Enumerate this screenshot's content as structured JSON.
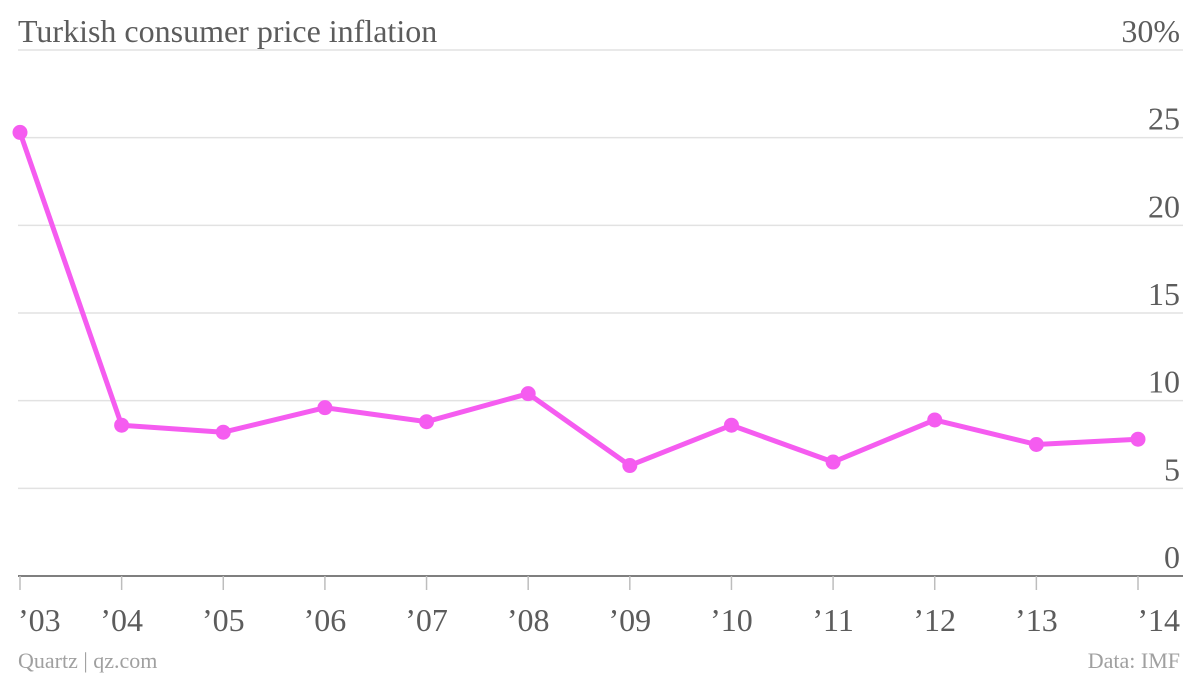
{
  "chart_data": {
    "type": "line",
    "title": "Turkish consumer price inflation",
    "categories": [
      "’03",
      "’04",
      "’05",
      "’06",
      "’07",
      "’08",
      "’09",
      "’10",
      "’11",
      "’12",
      "’13",
      "’14"
    ],
    "series": [
      {
        "values": [
          25.3,
          8.6,
          8.2,
          9.6,
          8.8,
          10.4,
          6.3,
          8.6,
          6.5,
          8.9,
          7.5,
          7.8
        ]
      }
    ],
    "yticks": [
      "30%",
      "25",
      "20",
      "15",
      "10",
      "5",
      "0"
    ],
    "ylim": [
      0,
      30
    ],
    "grid": true,
    "axis_side": "right",
    "colors": {
      "line": "#f55cf0"
    }
  },
  "footer": {
    "source_left": "Quartz | qz.com",
    "source_right": "Data: IMF"
  }
}
